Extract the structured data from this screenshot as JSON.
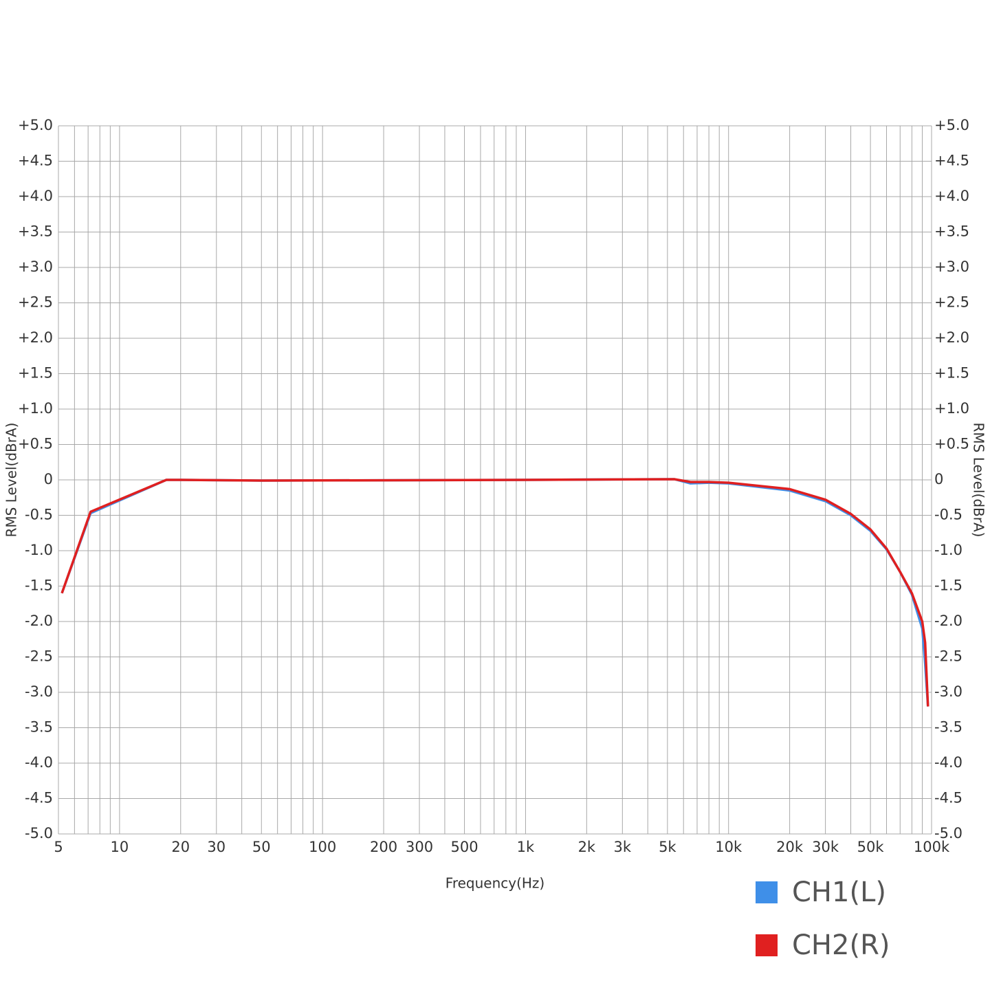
{
  "chart_data": {
    "type": "line",
    "x_label": "Frequency(Hz)",
    "y_label": "RMS Level(dBrA)",
    "x_scale": "log",
    "grid": true,
    "legend_position": "bottom-right",
    "x": [
      5.2,
      7.2,
      17,
      20,
      50,
      1000,
      5400,
      6500,
      8000,
      10000,
      20000,
      30000,
      40000,
      50000,
      60000,
      70000,
      80000,
      90000,
      93000,
      96000
    ],
    "series": [
      {
        "name": "CH1(L)",
        "color": "#3f8fe8",
        "values": [
          -1.6,
          -0.47,
          0,
          0,
          -0.01,
          0,
          0.01,
          -0.05,
          -0.04,
          -0.05,
          -0.15,
          -0.3,
          -0.5,
          -0.72,
          -0.98,
          -1.3,
          -1.62,
          -2.1,
          -2.6,
          -3.2
        ]
      },
      {
        "name": "CH2(R)",
        "color": "#e02020",
        "values": [
          -1.6,
          -0.45,
          0,
          0,
          -0.01,
          0,
          0.01,
          -0.03,
          -0.03,
          -0.04,
          -0.13,
          -0.28,
          -0.48,
          -0.7,
          -0.97,
          -1.3,
          -1.6,
          -2.0,
          -2.3,
          -3.2
        ]
      }
    ],
    "xlim": [
      5,
      100000
    ],
    "xticks": [
      5,
      10,
      20,
      30,
      50,
      100,
      200,
      300,
      500,
      {
        "value": 1000,
        "label": "1k"
      },
      {
        "value": 2000,
        "label": "2k"
      },
      {
        "value": 3000,
        "label": "3k"
      },
      {
        "value": 5000,
        "label": "5k"
      },
      {
        "value": 10000,
        "label": "10k"
      },
      {
        "value": 20000,
        "label": "20k"
      },
      {
        "value": 30000,
        "label": "30k"
      },
      {
        "value": 50000,
        "label": "50k"
      },
      {
        "value": 100000,
        "label": "100k"
      }
    ],
    "xminorticks": [
      6,
      7,
      8,
      9,
      40,
      60,
      70,
      80,
      90,
      400,
      600,
      700,
      800,
      900,
      4000,
      6000,
      7000,
      8000,
      9000,
      40000,
      60000,
      70000,
      80000,
      90000
    ],
    "ylim": [
      -5,
      5
    ],
    "yticks": [
      {
        "value": 5,
        "label": "+5.0"
      },
      {
        "value": 4.5,
        "label": "+4.5"
      },
      {
        "value": 4,
        "label": "+4.0"
      },
      {
        "value": 3.5,
        "label": "+3.5"
      },
      {
        "value": 3,
        "label": "+3.0"
      },
      {
        "value": 2.5,
        "label": "+2.5"
      },
      {
        "value": 2,
        "label": "+2.0"
      },
      {
        "value": 1.5,
        "label": "+1.5"
      },
      {
        "value": 1,
        "label": "+1.0"
      },
      {
        "value": 0.5,
        "label": "+0.5"
      },
      0,
      -0.5,
      {
        "value": -1,
        "label": "-1.0"
      },
      -1.5,
      {
        "value": -2,
        "label": "-2.0"
      },
      -2.5,
      {
        "value": -3,
        "label": "-3.0"
      },
      -3.5,
      {
        "value": -4,
        "label": "-4.0"
      },
      -4.5,
      {
        "value": -5,
        "label": "-5.0"
      }
    ]
  }
}
